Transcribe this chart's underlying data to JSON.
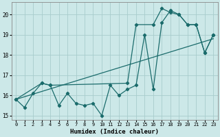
{
  "xlabel": "Humidex (Indice chaleur)",
  "ylabel": "",
  "background_color": "#cce8e8",
  "grid_color": "#a8cccc",
  "line_color": "#1a6b6b",
  "xlim": [
    -0.5,
    23.5
  ],
  "ylim": [
    14.8,
    20.6
  ],
  "yticks": [
    15,
    16,
    17,
    18,
    19,
    20
  ],
  "xticks": [
    0,
    1,
    2,
    3,
    4,
    5,
    6,
    7,
    8,
    9,
    10,
    11,
    12,
    13,
    14,
    15,
    16,
    17,
    18,
    19,
    20,
    21,
    22,
    23
  ],
  "line1_x": [
    0,
    1,
    2,
    3,
    4,
    5,
    6,
    7,
    8,
    9,
    10,
    11,
    12,
    13,
    14,
    15,
    16,
    17,
    18,
    19,
    20,
    21,
    22,
    23
  ],
  "line1_y": [
    15.8,
    15.4,
    16.1,
    16.6,
    16.5,
    15.5,
    16.1,
    15.6,
    15.5,
    15.6,
    15.0,
    16.5,
    16.0,
    16.3,
    16.5,
    19.0,
    16.3,
    19.6,
    20.2,
    20.0,
    19.5,
    19.5,
    18.1,
    19.0
  ],
  "line2_x": [
    0,
    3,
    4,
    13,
    14,
    16,
    17,
    18,
    19,
    20,
    21,
    22,
    23
  ],
  "line2_y": [
    15.8,
    16.6,
    16.5,
    16.6,
    19.5,
    19.5,
    20.3,
    20.1,
    20.0,
    19.5,
    19.5,
    18.1,
    19.0
  ],
  "line3_x": [
    0,
    23
  ],
  "line3_y": [
    15.8,
    18.8
  ]
}
